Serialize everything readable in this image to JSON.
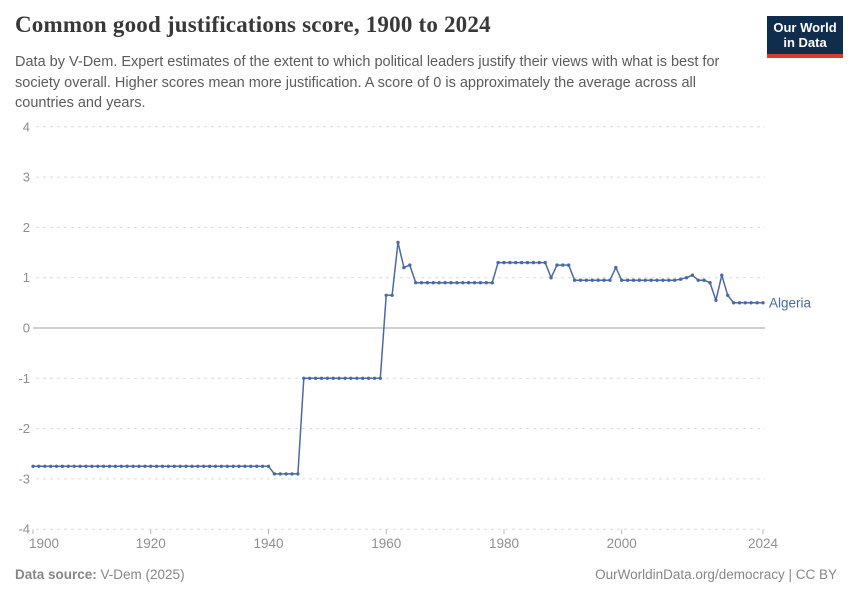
{
  "header": {
    "title": "Common good justifications score, 1900 to 2024",
    "subtitle": "Data by V-Dem. Expert estimates of the extent to which political leaders justify their views with what is best for society overall. Higher scores mean more justification. A score of 0 is approximately the average across all countries and years.",
    "logo": {
      "line1": "Our World",
      "line2": "in Data"
    }
  },
  "chart_data": {
    "type": "line",
    "title": "Common good justifications score, 1900 to 2024",
    "xlabel": "",
    "ylabel": "",
    "xlim": [
      1900,
      2024
    ],
    "ylim": [
      -4,
      4
    ],
    "xticks": [
      1900,
      1920,
      1940,
      1960,
      1980,
      2000,
      2024
    ],
    "yticks": [
      -4,
      -3,
      -2,
      -1,
      0,
      1,
      2,
      3,
      4
    ],
    "grid": "horizontal-dashed",
    "zero_line": true,
    "legend_position": "end-of-line-label",
    "x": [
      1900,
      1901,
      1902,
      1903,
      1904,
      1905,
      1906,
      1907,
      1908,
      1909,
      1910,
      1911,
      1912,
      1913,
      1914,
      1915,
      1916,
      1917,
      1918,
      1919,
      1920,
      1921,
      1922,
      1923,
      1924,
      1925,
      1926,
      1927,
      1928,
      1929,
      1930,
      1931,
      1932,
      1933,
      1934,
      1935,
      1936,
      1937,
      1938,
      1939,
      1940,
      1941,
      1942,
      1943,
      1944,
      1945,
      1946,
      1947,
      1948,
      1949,
      1950,
      1951,
      1952,
      1953,
      1954,
      1955,
      1956,
      1957,
      1958,
      1959,
      1960,
      1961,
      1962,
      1963,
      1964,
      1965,
      1966,
      1967,
      1968,
      1969,
      1970,
      1971,
      1972,
      1973,
      1974,
      1975,
      1976,
      1977,
      1978,
      1979,
      1980,
      1981,
      1982,
      1983,
      1984,
      1985,
      1986,
      1987,
      1988,
      1989,
      1990,
      1991,
      1992,
      1993,
      1994,
      1995,
      1996,
      1997,
      1998,
      1999,
      2000,
      2001,
      2002,
      2003,
      2004,
      2005,
      2006,
      2007,
      2008,
      2009,
      2010,
      2011,
      2012,
      2013,
      2014,
      2015,
      2016,
      2017,
      2018,
      2019,
      2020,
      2021,
      2022,
      2023,
      2024
    ],
    "series": [
      {
        "name": "Algeria",
        "color": "#4a69a5",
        "values": [
          -2.75,
          -2.75,
          -2.75,
          -2.75,
          -2.75,
          -2.75,
          -2.75,
          -2.75,
          -2.75,
          -2.75,
          -2.75,
          -2.75,
          -2.75,
          -2.75,
          -2.75,
          -2.75,
          -2.75,
          -2.75,
          -2.75,
          -2.75,
          -2.75,
          -2.75,
          -2.75,
          -2.75,
          -2.75,
          -2.75,
          -2.75,
          -2.75,
          -2.75,
          -2.75,
          -2.75,
          -2.75,
          -2.75,
          -2.75,
          -2.75,
          -2.75,
          -2.75,
          -2.75,
          -2.75,
          -2.75,
          -2.75,
          -2.9,
          -2.9,
          -2.9,
          -2.9,
          -2.9,
          -1,
          -1,
          -1,
          -1,
          -1,
          -1,
          -1,
          -1,
          -1,
          -1,
          -1,
          -1,
          -1,
          -1,
          0.65,
          0.65,
          1.7,
          1.2,
          1.25,
          0.9,
          0.9,
          0.9,
          0.9,
          0.9,
          0.9,
          0.9,
          0.9,
          0.9,
          0.9,
          0.9,
          0.9,
          0.9,
          0.9,
          1.3,
          1.3,
          1.3,
          1.3,
          1.3,
          1.3,
          1.3,
          1.3,
          1.3,
          1,
          1.25,
          1.25,
          1.25,
          0.95,
          0.95,
          0.95,
          0.95,
          0.95,
          0.95,
          0.95,
          1.2,
          0.95,
          0.95,
          0.95,
          0.95,
          0.95,
          0.95,
          0.95,
          0.95,
          0.95,
          0.95,
          0.97,
          1,
          1.05,
          0.95,
          0.95,
          0.9,
          0.55,
          1.05,
          0.65,
          0.5,
          0.5,
          0.5,
          0.5,
          0.5,
          0.5
        ]
      }
    ]
  },
  "colors": {
    "line": "#4a69a5",
    "grid": "#dadada",
    "zero_line": "#a0a0a0",
    "axis_text": "#8f8f8f",
    "logo_bg": "#102d4e",
    "logo_accent": "#d93b32"
  },
  "footer": {
    "source_label": "Data source:",
    "source_value": " V-Dem (2025)",
    "link": "OurWorldinData.org/democracy",
    "separator": " | ",
    "license": "CC BY"
  }
}
